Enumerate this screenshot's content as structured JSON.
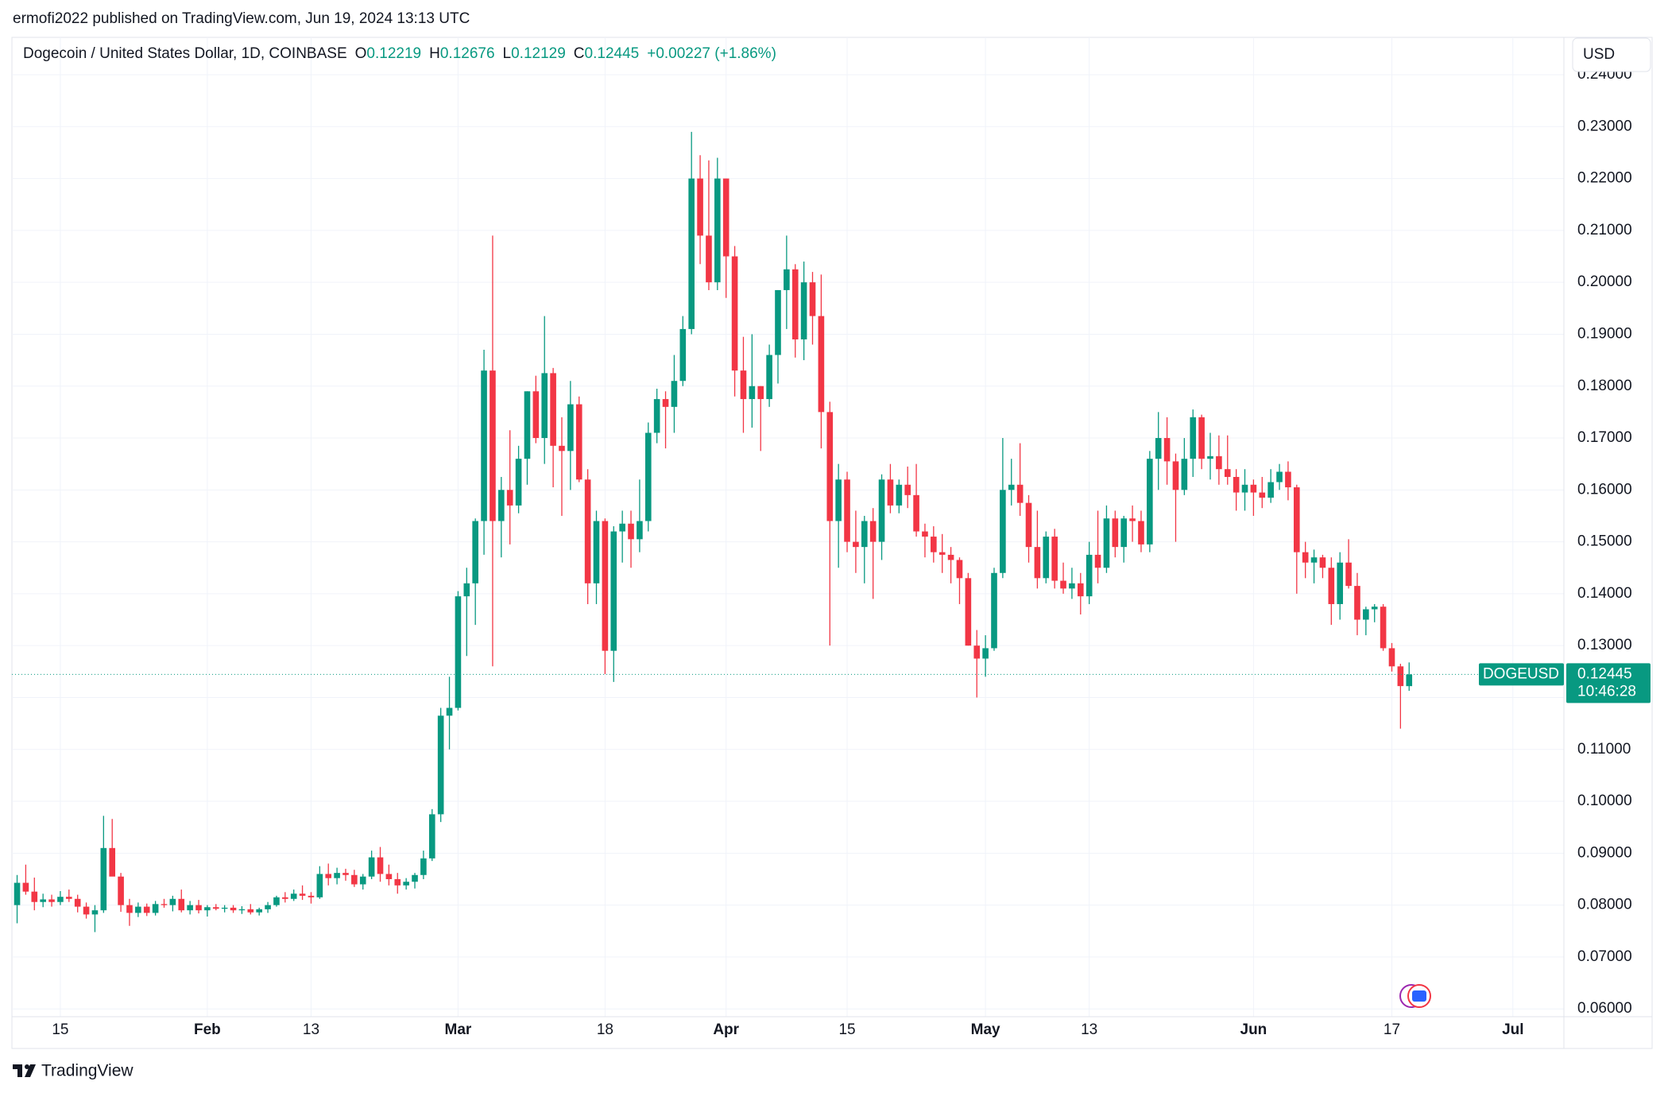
{
  "header": {
    "published": "ermofi2022 published on TradingView.com, Jun 19, 2024 13:13 UTC"
  },
  "legend": {
    "symbol": "Dogecoin / United States Dollar, 1D, COINBASE",
    "items": [
      {
        "label": "O",
        "value": 0.12219
      },
      {
        "label": "H",
        "value": 0.12676
      },
      {
        "label": "L",
        "value": 0.12129
      },
      {
        "label": "C",
        "value": 0.12445
      }
    ],
    "change": "+0.00227 (+1.86%)"
  },
  "currency_button": "USD",
  "footer": {
    "brand": "TradingView"
  },
  "chart_data": {
    "type": "candlestick",
    "up_color": "#089981",
    "down_color": "#f23645",
    "grid": true,
    "last_price": 0.12445,
    "symbol": "DOGEUSD",
    "countdown": "10:46:28",
    "xlim": [
      9.4,
      188.9
    ],
    "xticks": [
      {
        "value": 15,
        "label": "15"
      },
      {
        "value": 32,
        "label": "Feb"
      },
      {
        "value": 44,
        "label": "13"
      },
      {
        "value": 61,
        "label": "Mar"
      },
      {
        "value": 78,
        "label": "18"
      },
      {
        "value": 92,
        "label": "Apr"
      },
      {
        "value": 106,
        "label": "15"
      },
      {
        "value": 122,
        "label": "May"
      },
      {
        "value": 134,
        "label": "13"
      },
      {
        "value": 153,
        "label": "Jun"
      },
      {
        "value": 169,
        "label": "17"
      },
      {
        "value": 183,
        "label": "Jul"
      }
    ],
    "ylim": [
      0.0585,
      0.24
    ],
    "yticks": [
      {
        "value": 0.06,
        "label": "0.06000"
      },
      {
        "value": 0.07,
        "label": "0.07000"
      },
      {
        "value": 0.08,
        "label": "0.08000"
      },
      {
        "value": 0.09,
        "label": "0.09000"
      },
      {
        "value": 0.1,
        "label": "0.10000"
      },
      {
        "value": 0.11,
        "label": "0.11000"
      },
      {
        "value": 0.12,
        "label": "0.12000"
      },
      {
        "value": 0.13,
        "label": "0.13000"
      },
      {
        "value": 0.14,
        "label": "0.14000"
      },
      {
        "value": 0.15,
        "label": "0.15000"
      },
      {
        "value": 0.16,
        "label": "0.16000"
      },
      {
        "value": 0.17,
        "label": "0.17000"
      },
      {
        "value": 0.18,
        "label": "0.18000"
      },
      {
        "value": 0.19,
        "label": "0.19000"
      },
      {
        "value": 0.2,
        "label": "0.20000"
      },
      {
        "value": 0.21,
        "label": "0.21000"
      },
      {
        "value": 0.22,
        "label": "0.22000"
      },
      {
        "value": 0.23,
        "label": "0.23000"
      },
      {
        "value": 0.24,
        "label": "0.24000"
      }
    ],
    "x": [
      10,
      11,
      12,
      13,
      14,
      15,
      16,
      17,
      18,
      19,
      20,
      21,
      22,
      23,
      24,
      25,
      26,
      27,
      28,
      29,
      30,
      31,
      32,
      33,
      34,
      35,
      36,
      37,
      38,
      39,
      40,
      41,
      42,
      43,
      44,
      45,
      46,
      47,
      48,
      49,
      50,
      51,
      52,
      53,
      54,
      55,
      56,
      57,
      58,
      59,
      60,
      61,
      62,
      63,
      64,
      65,
      66,
      67,
      68,
      69,
      70,
      71,
      72,
      73,
      74,
      75,
      76,
      77,
      78,
      79,
      80,
      81,
      82,
      83,
      84,
      85,
      86,
      87,
      88,
      89,
      90,
      91,
      92,
      93,
      94,
      95,
      96,
      97,
      98,
      99,
      100,
      101,
      102,
      103,
      104,
      105,
      106,
      107,
      108,
      109,
      110,
      111,
      112,
      113,
      114,
      115,
      116,
      117,
      118,
      119,
      120,
      121,
      122,
      123,
      124,
      125,
      126,
      127,
      128,
      129,
      130,
      131,
      132,
      133,
      134,
      135,
      136,
      137,
      138,
      139,
      140,
      141,
      142,
      143,
      144,
      145,
      146,
      147,
      148,
      149,
      150,
      151,
      152,
      153,
      154,
      155,
      156,
      157,
      158,
      159,
      160,
      161,
      162,
      163,
      164,
      165,
      166,
      167,
      168,
      169,
      170,
      171
    ],
    "open": [
      0.08,
      0.0843,
      0.0826,
      0.0806,
      0.0811,
      0.0806,
      0.0816,
      0.0812,
      0.0797,
      0.0782,
      0.079,
      0.091,
      0.0855,
      0.08,
      0.0785,
      0.0797,
      0.0785,
      0.0802,
      0.08,
      0.0812,
      0.079,
      0.08,
      0.079,
      0.0796,
      0.0793,
      0.0795,
      0.079,
      0.0792,
      0.0786,
      0.0792,
      0.08,
      0.0815,
      0.0812,
      0.0822,
      0.0818,
      0.0815,
      0.086,
      0.0852,
      0.0862,
      0.0858,
      0.084,
      0.0855,
      0.0892,
      0.086,
      0.085,
      0.0838,
      0.0845,
      0.0858,
      0.089,
      0.0975,
      0.1165,
      0.118,
      0.1395,
      0.142,
      0.154,
      0.183,
      0.154,
      0.16,
      0.157,
      0.166,
      0.179,
      0.17,
      0.1825,
      0.1685,
      0.1675,
      0.1765,
      0.162,
      0.142,
      0.154,
      0.129,
      0.152,
      0.1535,
      0.1505,
      0.154,
      0.171,
      0.1775,
      0.176,
      0.181,
      0.191,
      0.22,
      0.209,
      0.2,
      0.22,
      0.205,
      0.183,
      0.1775,
      0.18,
      0.1775,
      0.186,
      0.1985,
      0.2025,
      0.189,
      0.2,
      0.1935,
      0.175,
      0.154,
      0.162,
      0.15,
      0.149,
      0.154,
      0.15,
      0.162,
      0.157,
      0.161,
      0.159,
      0.152,
      0.151,
      0.148,
      0.1475,
      0.1465,
      0.143,
      0.13,
      0.1275,
      0.1295,
      0.144,
      0.16,
      0.161,
      0.1575,
      0.149,
      0.143,
      0.151,
      0.1425,
      0.141,
      0.142,
      0.1395,
      0.1475,
      0.145,
      0.1545,
      0.149,
      0.1545,
      0.154,
      0.1495,
      0.166,
      0.17,
      0.1655,
      0.16,
      0.166,
      0.174,
      0.166,
      0.1665,
      0.164,
      0.1625,
      0.1595,
      0.161,
      0.1595,
      0.1585,
      0.1615,
      0.1635,
      0.1605,
      0.148,
      0.146,
      0.147,
      0.145,
      0.138,
      0.146,
      0.1415,
      0.135,
      0.137,
      0.1375,
      0.1295,
      0.126,
      0.12219
    ],
    "high": [
      0.0858,
      0.0878,
      0.0853,
      0.0822,
      0.082,
      0.0827,
      0.083,
      0.082,
      0.0805,
      0.08,
      0.0972,
      0.0966,
      0.0862,
      0.0812,
      0.0805,
      0.0803,
      0.0808,
      0.0812,
      0.0818,
      0.083,
      0.0808,
      0.081,
      0.08,
      0.0802,
      0.08,
      0.08,
      0.0798,
      0.0802,
      0.0795,
      0.0806,
      0.0818,
      0.0825,
      0.083,
      0.0838,
      0.0825,
      0.0875,
      0.088,
      0.0872,
      0.087,
      0.0868,
      0.086,
      0.0905,
      0.0912,
      0.0878,
      0.0862,
      0.0852,
      0.0862,
      0.0905,
      0.0985,
      0.118,
      0.124,
      0.1405,
      0.145,
      0.1545,
      0.187,
      0.209,
      0.1625,
      0.1715,
      0.1685,
      0.179,
      0.182,
      0.1935,
      0.1835,
      0.174,
      0.181,
      0.178,
      0.164,
      0.156,
      0.1545,
      0.153,
      0.156,
      0.156,
      0.162,
      0.173,
      0.1795,
      0.179,
      0.186,
      0.1935,
      0.229,
      0.2245,
      0.2235,
      0.224,
      0.22,
      0.207,
      0.1895,
      0.19,
      0.18,
      0.188,
      0.1985,
      0.209,
      0.2035,
      0.204,
      0.202,
      0.2015,
      0.177,
      0.165,
      0.1635,
      0.156,
      0.155,
      0.1565,
      0.163,
      0.165,
      0.162,
      0.1645,
      0.165,
      0.1535,
      0.153,
      0.1515,
      0.149,
      0.147,
      0.144,
      0.133,
      0.132,
      0.145,
      0.17,
      0.166,
      0.169,
      0.159,
      0.156,
      0.152,
      0.1525,
      0.146,
      0.145,
      0.144,
      0.15,
      0.156,
      0.157,
      0.156,
      0.155,
      0.157,
      0.156,
      0.1675,
      0.175,
      0.174,
      0.167,
      0.17,
      0.1755,
      0.1745,
      0.171,
      0.1705,
      0.1705,
      0.164,
      0.164,
      0.162,
      0.1625,
      0.164,
      0.165,
      0.1655,
      0.161,
      0.15,
      0.1485,
      0.1475,
      0.147,
      0.148,
      0.1505,
      0.144,
      0.1375,
      0.138,
      0.138,
      0.1305,
      0.1265,
      0.12676
    ],
    "low": [
      0.0765,
      0.082,
      0.079,
      0.0796,
      0.0797,
      0.08,
      0.0806,
      0.0786,
      0.0774,
      0.0748,
      0.0785,
      0.0862,
      0.0787,
      0.076,
      0.0777,
      0.0779,
      0.078,
      0.0795,
      0.0788,
      0.0786,
      0.0782,
      0.0784,
      0.0778,
      0.079,
      0.0786,
      0.0785,
      0.0783,
      0.0782,
      0.078,
      0.0785,
      0.0797,
      0.0805,
      0.0808,
      0.081,
      0.0803,
      0.0812,
      0.0838,
      0.084,
      0.0847,
      0.0835,
      0.083,
      0.085,
      0.0845,
      0.0838,
      0.0822,
      0.083,
      0.0832,
      0.085,
      0.0885,
      0.096,
      0.11,
      0.1175,
      0.128,
      0.134,
      0.1475,
      0.126,
      0.147,
      0.1495,
      0.1555,
      0.161,
      0.169,
      0.165,
      0.1605,
      0.155,
      0.16,
      0.1615,
      0.138,
      0.138,
      0.1245,
      0.123,
      0.146,
      0.145,
      0.148,
      0.152,
      0.169,
      0.168,
      0.171,
      0.18,
      0.19,
      0.2035,
      0.1985,
      0.1985,
      0.197,
      0.178,
      0.171,
      0.172,
      0.1675,
      0.176,
      0.1805,
      0.191,
      0.1855,
      0.185,
      0.188,
      0.168,
      0.13,
      0.145,
      0.148,
      0.144,
      0.142,
      0.139,
      0.1465,
      0.1555,
      0.1555,
      0.1565,
      0.151,
      0.147,
      0.146,
      0.144,
      0.142,
      0.138,
      0.13,
      0.12,
      0.124,
      0.129,
      0.143,
      0.157,
      0.155,
      0.146,
      0.141,
      0.142,
      0.141,
      0.14,
      0.139,
      0.136,
      0.138,
      0.142,
      0.144,
      0.147,
      0.146,
      0.15,
      0.148,
      0.148,
      0.16,
      0.161,
      0.15,
      0.159,
      0.1625,
      0.164,
      0.162,
      0.161,
      0.161,
      0.156,
      0.156,
      0.155,
      0.1565,
      0.1575,
      0.16,
      0.158,
      0.14,
      0.143,
      0.142,
      0.143,
      0.134,
      0.135,
      0.141,
      0.132,
      0.132,
      0.1345,
      0.129,
      0.125,
      0.114,
      0.12129
    ],
    "close": [
      0.0843,
      0.0826,
      0.0806,
      0.0811,
      0.0806,
      0.0816,
      0.0812,
      0.0797,
      0.0782,
      0.079,
      0.091,
      0.0855,
      0.08,
      0.0785,
      0.0797,
      0.0785,
      0.0802,
      0.08,
      0.0812,
      0.079,
      0.08,
      0.079,
      0.0796,
      0.0793,
      0.0795,
      0.079,
      0.0792,
      0.0786,
      0.0792,
      0.08,
      0.0815,
      0.0812,
      0.0822,
      0.0818,
      0.0815,
      0.086,
      0.0852,
      0.0862,
      0.0858,
      0.084,
      0.0855,
      0.0892,
      0.086,
      0.085,
      0.0838,
      0.0845,
      0.0858,
      0.089,
      0.0975,
      0.1165,
      0.118,
      0.1395,
      0.142,
      0.154,
      0.183,
      0.154,
      0.16,
      0.157,
      0.166,
      0.179,
      0.17,
      0.1825,
      0.1685,
      0.1675,
      0.1765,
      0.162,
      0.142,
      0.154,
      0.129,
      0.152,
      0.1535,
      0.1505,
      0.154,
      0.171,
      0.1775,
      0.176,
      0.181,
      0.191,
      0.22,
      0.209,
      0.2,
      0.22,
      0.205,
      0.183,
      0.1775,
      0.18,
      0.1775,
      0.186,
      0.1985,
      0.2025,
      0.189,
      0.2,
      0.1935,
      0.175,
      0.154,
      0.162,
      0.15,
      0.149,
      0.154,
      0.15,
      0.162,
      0.157,
      0.161,
      0.159,
      0.152,
      0.151,
      0.148,
      0.1475,
      0.1465,
      0.143,
      0.13,
      0.1275,
      0.1295,
      0.144,
      0.16,
      0.161,
      0.1575,
      0.149,
      0.143,
      0.151,
      0.1425,
      0.141,
      0.142,
      0.1395,
      0.1475,
      0.145,
      0.1545,
      0.149,
      0.1545,
      0.154,
      0.1495,
      0.166,
      0.17,
      0.1655,
      0.16,
      0.166,
      0.174,
      0.166,
      0.1665,
      0.164,
      0.1625,
      0.1595,
      0.161,
      0.1595,
      0.1585,
      0.1615,
      0.1635,
      0.1605,
      0.148,
      0.146,
      0.147,
      0.145,
      0.138,
      0.146,
      0.1415,
      0.135,
      0.137,
      0.1375,
      0.1295,
      0.126,
      0.1222,
      0.12445
    ]
  }
}
